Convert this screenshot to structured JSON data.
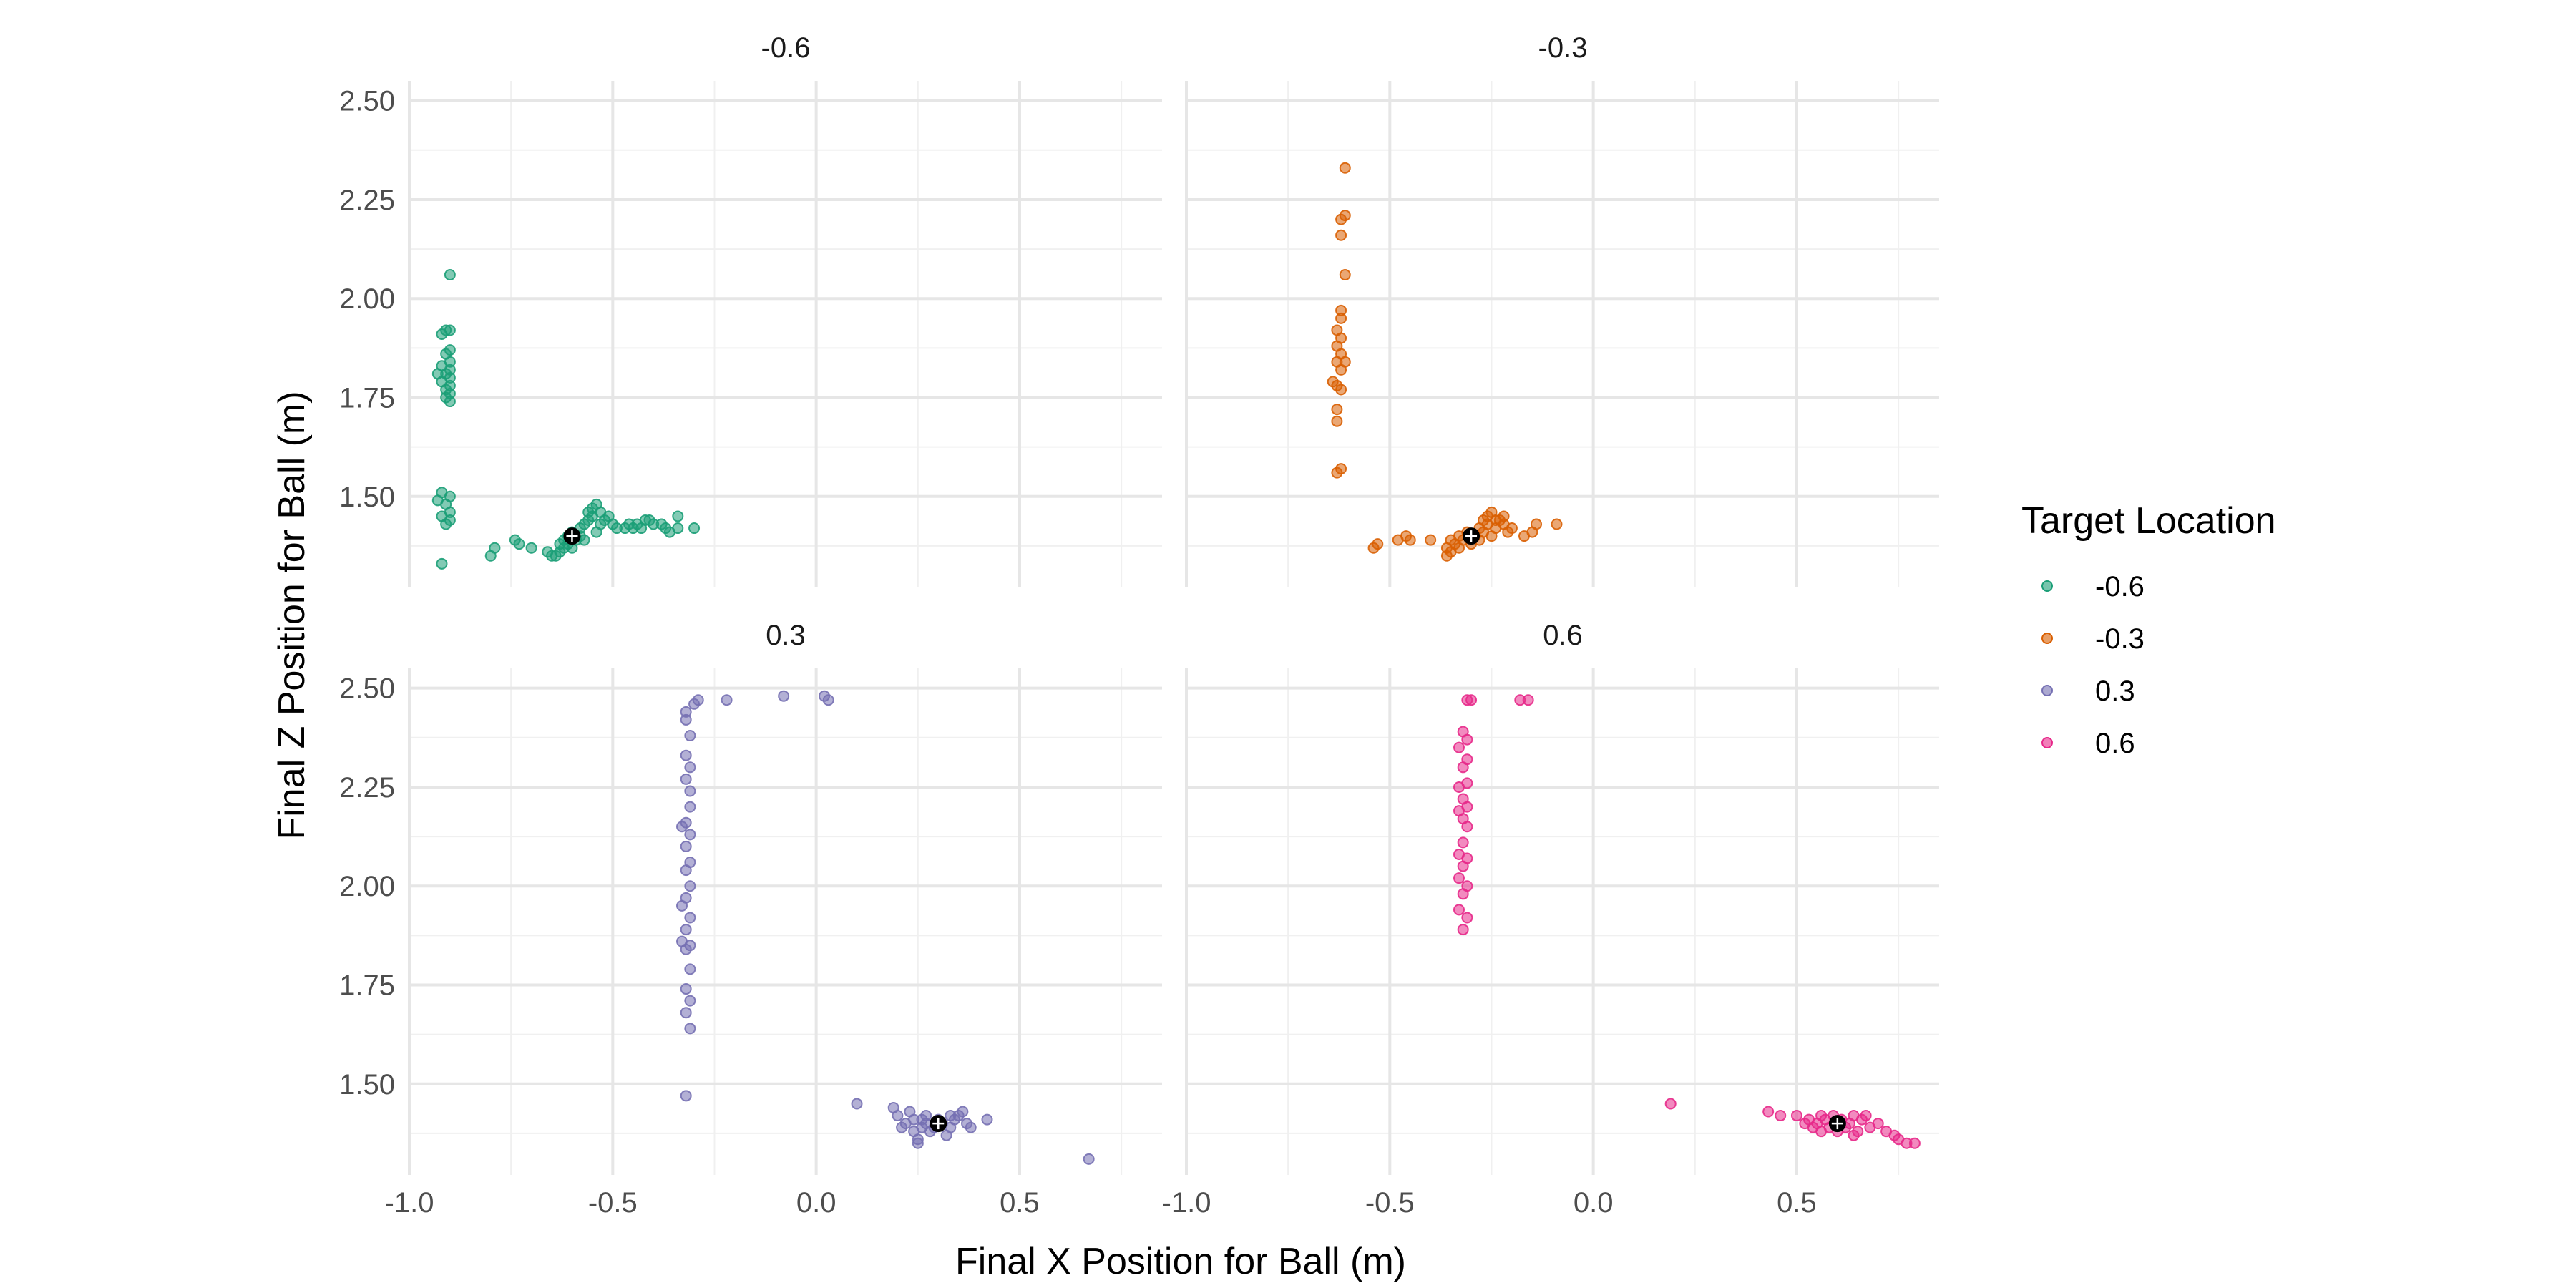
{
  "chart_data": {
    "type": "scatter",
    "facet_by": "Target Location",
    "xlabel": "Final X Position for Ball (m)",
    "ylabel": "Final Z Position for Ball (m)",
    "xlim": [
      -1.0,
      0.85
    ],
    "ylim": [
      1.27,
      2.55
    ],
    "x_ticks": [
      -1.0,
      -0.5,
      0.0,
      0.5
    ],
    "x_tick_labels": [
      "-1.0",
      "-0.5",
      "0.0",
      "0.5"
    ],
    "y_ticks": [
      1.5,
      1.75,
      2.0,
      2.25,
      2.5
    ],
    "y_tick_labels": [
      "1.50",
      "1.75",
      "2.00",
      "2.25",
      "2.50"
    ],
    "grid": true,
    "legend": {
      "title": "Target Location",
      "position": "right",
      "entries": [
        {
          "label": "-0.6",
          "color": "#1b9e77"
        },
        {
          "label": "-0.3",
          "color": "#d95f02"
        },
        {
          "label": "0.3",
          "color": "#7570b3"
        },
        {
          "label": "0.6",
          "color": "#e7298a"
        }
      ]
    },
    "panels": [
      {
        "title": "-0.6",
        "color": "#1b9e77",
        "target": {
          "x": -0.6,
          "y": 1.4
        },
        "points": [
          [
            -0.9,
            2.06
          ],
          [
            -0.91,
            1.92
          ],
          [
            -0.9,
            1.92
          ],
          [
            -0.92,
            1.91
          ],
          [
            -0.9,
            1.87
          ],
          [
            -0.91,
            1.86
          ],
          [
            -0.9,
            1.84
          ],
          [
            -0.92,
            1.83
          ],
          [
            -0.9,
            1.82
          ],
          [
            -0.93,
            1.81
          ],
          [
            -0.91,
            1.81
          ],
          [
            -0.9,
            1.8
          ],
          [
            -0.92,
            1.79
          ],
          [
            -0.9,
            1.78
          ],
          [
            -0.91,
            1.77
          ],
          [
            -0.9,
            1.76
          ],
          [
            -0.91,
            1.75
          ],
          [
            -0.9,
            1.74
          ],
          [
            -0.92,
            1.51
          ],
          [
            -0.9,
            1.5
          ],
          [
            -0.93,
            1.49
          ],
          [
            -0.91,
            1.48
          ],
          [
            -0.9,
            1.46
          ],
          [
            -0.92,
            1.45
          ],
          [
            -0.9,
            1.44
          ],
          [
            -0.91,
            1.43
          ],
          [
            -0.92,
            1.33
          ],
          [
            -0.79,
            1.37
          ],
          [
            -0.8,
            1.35
          ],
          [
            -0.74,
            1.39
          ],
          [
            -0.73,
            1.38
          ],
          [
            -0.7,
            1.37
          ],
          [
            -0.66,
            1.36
          ],
          [
            -0.65,
            1.35
          ],
          [
            -0.64,
            1.35
          ],
          [
            -0.63,
            1.36
          ],
          [
            -0.62,
            1.37
          ],
          [
            -0.61,
            1.38
          ],
          [
            -0.62,
            1.39
          ],
          [
            -0.61,
            1.4
          ],
          [
            -0.6,
            1.41
          ],
          [
            -0.59,
            1.39
          ],
          [
            -0.58,
            1.4
          ],
          [
            -0.58,
            1.42
          ],
          [
            -0.57,
            1.43
          ],
          [
            -0.56,
            1.44
          ],
          [
            -0.55,
            1.45
          ],
          [
            -0.56,
            1.46
          ],
          [
            -0.55,
            1.47
          ],
          [
            -0.54,
            1.48
          ],
          [
            -0.53,
            1.46
          ],
          [
            -0.52,
            1.44
          ],
          [
            -0.51,
            1.45
          ],
          [
            -0.5,
            1.43
          ],
          [
            -0.49,
            1.42
          ],
          [
            -0.47,
            1.42
          ],
          [
            -0.46,
            1.43
          ],
          [
            -0.45,
            1.42
          ],
          [
            -0.44,
            1.43
          ],
          [
            -0.43,
            1.42
          ],
          [
            -0.42,
            1.44
          ],
          [
            -0.41,
            1.44
          ],
          [
            -0.4,
            1.43
          ],
          [
            -0.38,
            1.43
          ],
          [
            -0.37,
            1.42
          ],
          [
            -0.36,
            1.41
          ],
          [
            -0.34,
            1.45
          ],
          [
            -0.34,
            1.42
          ],
          [
            -0.3,
            1.42
          ],
          [
            -0.63,
            1.38
          ],
          [
            -0.6,
            1.37
          ],
          [
            -0.57,
            1.39
          ],
          [
            -0.54,
            1.41
          ],
          [
            -0.53,
            1.43
          ]
        ]
      },
      {
        "title": "-0.3",
        "color": "#d95f02",
        "target": {
          "x": -0.3,
          "y": 1.4
        },
        "points": [
          [
            -0.61,
            2.33
          ],
          [
            -0.61,
            2.21
          ],
          [
            -0.62,
            2.2
          ],
          [
            -0.62,
            2.16
          ],
          [
            -0.61,
            2.06
          ],
          [
            -0.62,
            1.97
          ],
          [
            -0.62,
            1.95
          ],
          [
            -0.63,
            1.92
          ],
          [
            -0.62,
            1.9
          ],
          [
            -0.63,
            1.88
          ],
          [
            -0.62,
            1.86
          ],
          [
            -0.63,
            1.84
          ],
          [
            -0.61,
            1.84
          ],
          [
            -0.62,
            1.82
          ],
          [
            -0.64,
            1.79
          ],
          [
            -0.63,
            1.78
          ],
          [
            -0.62,
            1.77
          ],
          [
            -0.63,
            1.72
          ],
          [
            -0.63,
            1.69
          ],
          [
            -0.62,
            1.57
          ],
          [
            -0.63,
            1.56
          ],
          [
            -0.54,
            1.37
          ],
          [
            -0.53,
            1.38
          ],
          [
            -0.48,
            1.39
          ],
          [
            -0.46,
            1.4
          ],
          [
            -0.45,
            1.39
          ],
          [
            -0.4,
            1.39
          ],
          [
            -0.36,
            1.37
          ],
          [
            -0.36,
            1.35
          ],
          [
            -0.35,
            1.36
          ],
          [
            -0.34,
            1.38
          ],
          [
            -0.33,
            1.37
          ],
          [
            -0.33,
            1.4
          ],
          [
            -0.32,
            1.39
          ],
          [
            -0.31,
            1.41
          ],
          [
            -0.3,
            1.38
          ],
          [
            -0.29,
            1.4
          ],
          [
            -0.28,
            1.42
          ],
          [
            -0.27,
            1.44
          ],
          [
            -0.26,
            1.45
          ],
          [
            -0.25,
            1.46
          ],
          [
            -0.26,
            1.43
          ],
          [
            -0.24,
            1.42
          ],
          [
            -0.23,
            1.44
          ],
          [
            -0.22,
            1.45
          ],
          [
            -0.22,
            1.43
          ],
          [
            -0.21,
            1.41
          ],
          [
            -0.2,
            1.42
          ],
          [
            -0.17,
            1.4
          ],
          [
            -0.15,
            1.41
          ],
          [
            -0.14,
            1.43
          ],
          [
            -0.09,
            1.43
          ],
          [
            -0.27,
            1.41
          ],
          [
            -0.25,
            1.4
          ],
          [
            -0.24,
            1.44
          ],
          [
            -0.28,
            1.39
          ],
          [
            -0.35,
            1.39
          ]
        ]
      },
      {
        "title": "0.3",
        "color": "#7570b3",
        "target": {
          "x": 0.3,
          "y": 1.4
        },
        "points": [
          [
            -0.29,
            2.47
          ],
          [
            -0.3,
            2.46
          ],
          [
            -0.22,
            2.47
          ],
          [
            -0.08,
            2.48
          ],
          [
            0.02,
            2.48
          ],
          [
            0.03,
            2.47
          ],
          [
            -0.32,
            2.44
          ],
          [
            -0.32,
            2.42
          ],
          [
            -0.31,
            2.38
          ],
          [
            -0.32,
            2.33
          ],
          [
            -0.31,
            2.3
          ],
          [
            -0.32,
            2.27
          ],
          [
            -0.31,
            2.24
          ],
          [
            -0.31,
            2.2
          ],
          [
            -0.32,
            2.16
          ],
          [
            -0.33,
            2.15
          ],
          [
            -0.31,
            2.13
          ],
          [
            -0.32,
            2.1
          ],
          [
            -0.31,
            2.06
          ],
          [
            -0.32,
            2.04
          ],
          [
            -0.31,
            2.0
          ],
          [
            -0.32,
            1.97
          ],
          [
            -0.33,
            1.95
          ],
          [
            -0.31,
            1.92
          ],
          [
            -0.32,
            1.89
          ],
          [
            -0.33,
            1.86
          ],
          [
            -0.31,
            1.85
          ],
          [
            -0.32,
            1.84
          ],
          [
            -0.31,
            1.79
          ],
          [
            -0.32,
            1.74
          ],
          [
            -0.31,
            1.71
          ],
          [
            -0.32,
            1.68
          ],
          [
            -0.31,
            1.64
          ],
          [
            -0.32,
            1.47
          ],
          [
            0.1,
            1.45
          ],
          [
            0.19,
            1.44
          ],
          [
            0.2,
            1.42
          ],
          [
            0.22,
            1.4
          ],
          [
            0.23,
            1.43
          ],
          [
            0.24,
            1.41
          ],
          [
            0.24,
            1.38
          ],
          [
            0.25,
            1.36
          ],
          [
            0.25,
            1.35
          ],
          [
            0.26,
            1.39
          ],
          [
            0.27,
            1.42
          ],
          [
            0.27,
            1.4
          ],
          [
            0.28,
            1.38
          ],
          [
            0.29,
            1.39
          ],
          [
            0.3,
            1.41
          ],
          [
            0.31,
            1.4
          ],
          [
            0.32,
            1.37
          ],
          [
            0.33,
            1.39
          ],
          [
            0.34,
            1.41
          ],
          [
            0.35,
            1.42
          ],
          [
            0.36,
            1.43
          ],
          [
            0.37,
            1.4
          ],
          [
            0.38,
            1.39
          ],
          [
            0.42,
            1.41
          ],
          [
            0.67,
            1.31
          ],
          [
            0.21,
            1.39
          ],
          [
            0.26,
            1.41
          ],
          [
            0.33,
            1.42
          ]
        ]
      },
      {
        "title": "0.6",
        "color": "#e7298a",
        "target": {
          "x": 0.6,
          "y": 1.4
        },
        "points": [
          [
            -0.3,
            2.47
          ],
          [
            -0.31,
            2.47
          ],
          [
            -0.18,
            2.47
          ],
          [
            -0.16,
            2.47
          ],
          [
            -0.32,
            2.39
          ],
          [
            -0.31,
            2.37
          ],
          [
            -0.33,
            2.35
          ],
          [
            -0.31,
            2.32
          ],
          [
            -0.32,
            2.3
          ],
          [
            -0.31,
            2.26
          ],
          [
            -0.33,
            2.25
          ],
          [
            -0.32,
            2.22
          ],
          [
            -0.31,
            2.2
          ],
          [
            -0.33,
            2.19
          ],
          [
            -0.32,
            2.17
          ],
          [
            -0.31,
            2.15
          ],
          [
            -0.32,
            2.11
          ],
          [
            -0.33,
            2.08
          ],
          [
            -0.31,
            2.07
          ],
          [
            -0.32,
            2.05
          ],
          [
            -0.33,
            2.02
          ],
          [
            -0.31,
            2.0
          ],
          [
            -0.32,
            1.98
          ],
          [
            -0.33,
            1.94
          ],
          [
            -0.31,
            1.92
          ],
          [
            -0.32,
            1.89
          ],
          [
            0.19,
            1.45
          ],
          [
            0.43,
            1.43
          ],
          [
            0.46,
            1.42
          ],
          [
            0.5,
            1.42
          ],
          [
            0.52,
            1.4
          ],
          [
            0.53,
            1.41
          ],
          [
            0.54,
            1.39
          ],
          [
            0.55,
            1.4
          ],
          [
            0.56,
            1.38
          ],
          [
            0.57,
            1.41
          ],
          [
            0.58,
            1.39
          ],
          [
            0.59,
            1.42
          ],
          [
            0.6,
            1.38
          ],
          [
            0.61,
            1.41
          ],
          [
            0.62,
            1.39
          ],
          [
            0.63,
            1.4
          ],
          [
            0.64,
            1.37
          ],
          [
            0.65,
            1.38
          ],
          [
            0.66,
            1.41
          ],
          [
            0.67,
            1.42
          ],
          [
            0.68,
            1.39
          ],
          [
            0.7,
            1.4
          ],
          [
            0.72,
            1.38
          ],
          [
            0.74,
            1.37
          ],
          [
            0.75,
            1.36
          ],
          [
            0.77,
            1.35
          ],
          [
            0.79,
            1.35
          ],
          [
            0.56,
            1.42
          ],
          [
            0.6,
            1.4
          ],
          [
            0.64,
            1.42
          ]
        ]
      }
    ]
  }
}
